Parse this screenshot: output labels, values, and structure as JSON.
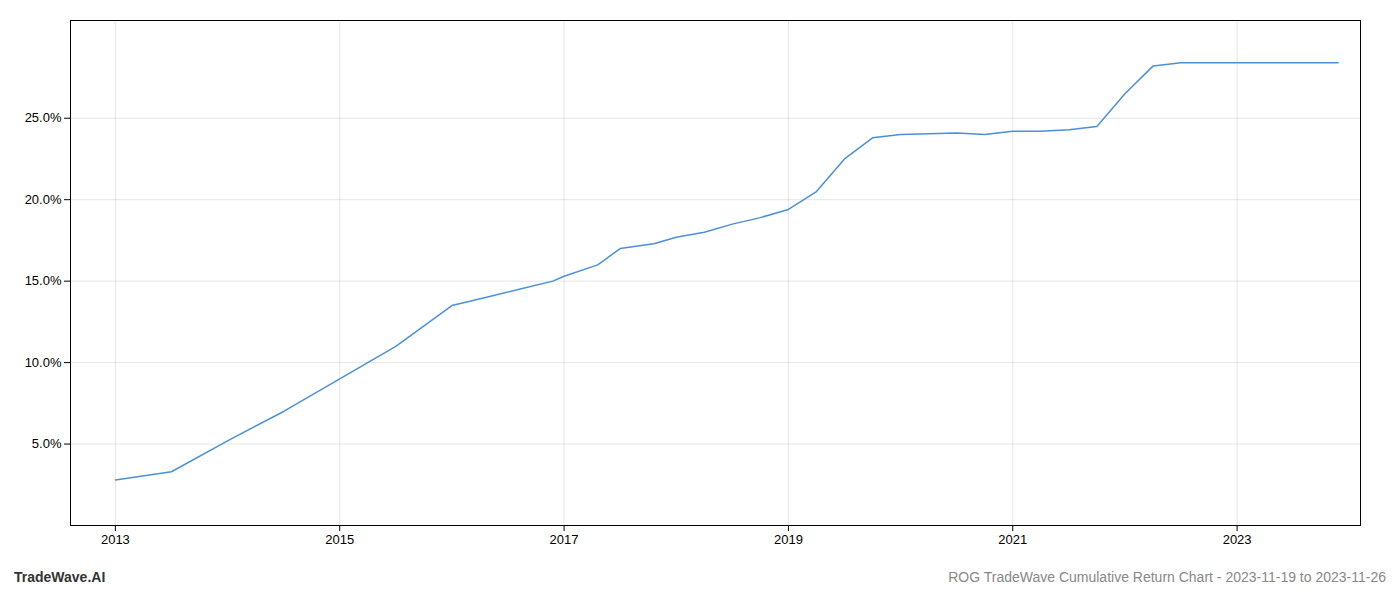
{
  "chart_data": {
    "type": "line",
    "x": [
      2013.0,
      2013.5,
      2014.0,
      2014.5,
      2015.0,
      2015.5,
      2016.0,
      2016.3,
      2016.6,
      2016.9,
      2017.0,
      2017.3,
      2017.5,
      2017.8,
      2018.0,
      2018.25,
      2018.5,
      2018.75,
      2019.0,
      2019.25,
      2019.5,
      2019.75,
      2020.0,
      2020.25,
      2020.5,
      2020.75,
      2021.0,
      2021.25,
      2021.5,
      2021.75,
      2022.0,
      2022.25,
      2022.5,
      2022.75,
      2023.0,
      2023.25,
      2023.5,
      2023.9
    ],
    "values": [
      2.8,
      3.3,
      5.2,
      7.0,
      9.0,
      11.0,
      13.5,
      14.0,
      14.5,
      15.0,
      15.3,
      16.0,
      17.0,
      17.3,
      17.7,
      18.0,
      18.5,
      18.9,
      19.4,
      20.5,
      22.5,
      23.8,
      24.0,
      24.05,
      24.1,
      24.0,
      24.2,
      24.2,
      24.3,
      24.5,
      26.5,
      28.2,
      28.4,
      28.4,
      28.4,
      28.4,
      28.4,
      28.4
    ],
    "color": "#4a90d9",
    "xlim": [
      2012.6,
      2024.1
    ],
    "xticks": [
      2013,
      2015,
      2017,
      2019,
      2021,
      2023
    ],
    "ylim": [
      0,
      31
    ],
    "yticks": [
      {
        "value": 5.0,
        "label": "5.0%"
      },
      {
        "value": 10.0,
        "label": "10.0%"
      },
      {
        "value": 15.0,
        "label": "15.0%"
      },
      {
        "value": 20.0,
        "label": "20.0%"
      },
      {
        "value": 25.0,
        "label": "25.0%"
      }
    ],
    "grid": true,
    "annotations": [
      "TradeWave.AI",
      "ROG TradeWave Cumulative Return Chart - 2023-11-19 to 2023-11-26"
    ]
  }
}
